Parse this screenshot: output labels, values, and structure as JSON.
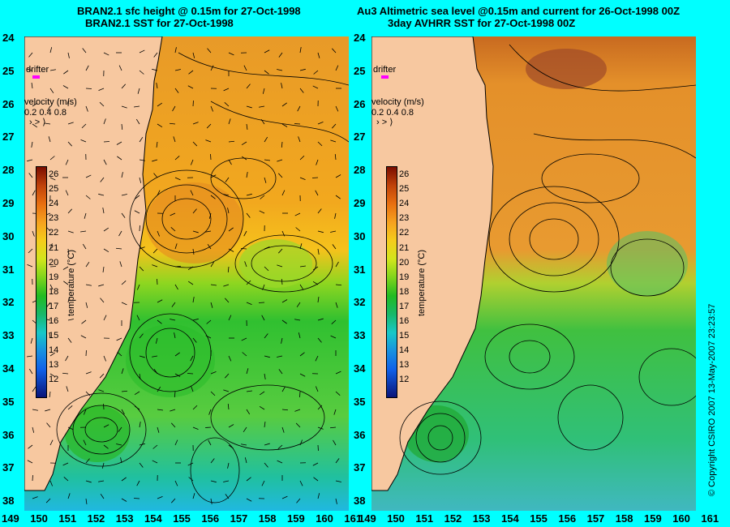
{
  "left_title_1": "BRAN2.1 sfc height @ 0.15m for 27-Oct-1998",
  "left_title_2": "BRAN2.1 SST for 27-Oct-1998",
  "right_title_1": "Au3 Altimetric sea level  @0.15m and current for 26-Oct-1998 00Z",
  "right_title_2": "3day AVHRR SST for 27-Oct-1998 00Z",
  "lat_ticks": [
    "24",
    "25",
    "26",
    "27",
    "28",
    "29",
    "30",
    "31",
    "32",
    "33",
    "34",
    "35",
    "36",
    "37",
    "38"
  ],
  "lon_ticks": [
    "149",
    "150",
    "151",
    "152",
    "153",
    "154",
    "155",
    "156",
    "157",
    "158",
    "159",
    "160",
    "161"
  ],
  "drifter_label": "drifter",
  "velocity_label": "velocity (m/s)",
  "velocity_scale": "0.2 0.4 0.8",
  "colorbar_title": "temperature (°C)",
  "colorbar_ticks": [
    "26",
    "25",
    "24",
    "23",
    "22",
    "21",
    "20",
    "19",
    "18",
    "17",
    "16",
    "15",
    "14",
    "13",
    "12"
  ],
  "copyright": "© Copyright CSIRO 2007    13-May-2007 23:23:57",
  "colors": {
    "land": "#f7c8a0",
    "background": "#00ffff",
    "drifter": "#ff00ff"
  }
}
